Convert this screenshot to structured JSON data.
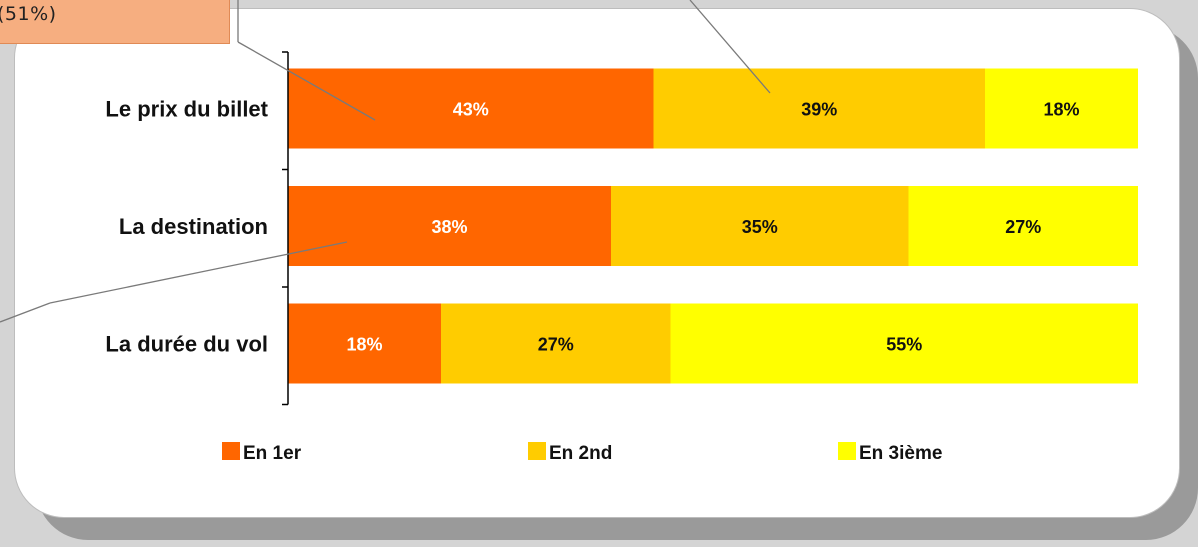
{
  "callout": {
    "text": "(51%)"
  },
  "chart_data": {
    "type": "bar",
    "orientation": "horizontal",
    "stacked": true,
    "percent": true,
    "categories": [
      "Le prix du billet",
      "La destination",
      "La durée du vol"
    ],
    "series": [
      {
        "name": "En 1er",
        "values": [
          43,
          38,
          18
        ],
        "color": "#ff6600",
        "label_color": "#ffffff"
      },
      {
        "name": "En 2nd",
        "values": [
          39,
          35,
          27
        ],
        "color": "#ffcc00",
        "label_color": "#111111"
      },
      {
        "name": "En 3ième",
        "values": [
          18,
          27,
          55
        ],
        "color": "#ffff00",
        "label_color": "#111111"
      }
    ],
    "value_labels": [
      [
        "43%",
        "38%",
        "18%"
      ],
      [
        "39%",
        "35%",
        "27%"
      ],
      [
        "18%",
        "27%",
        "55%"
      ]
    ],
    "xlim": [
      0,
      100
    ],
    "grid": false,
    "legend_position": "bottom"
  }
}
